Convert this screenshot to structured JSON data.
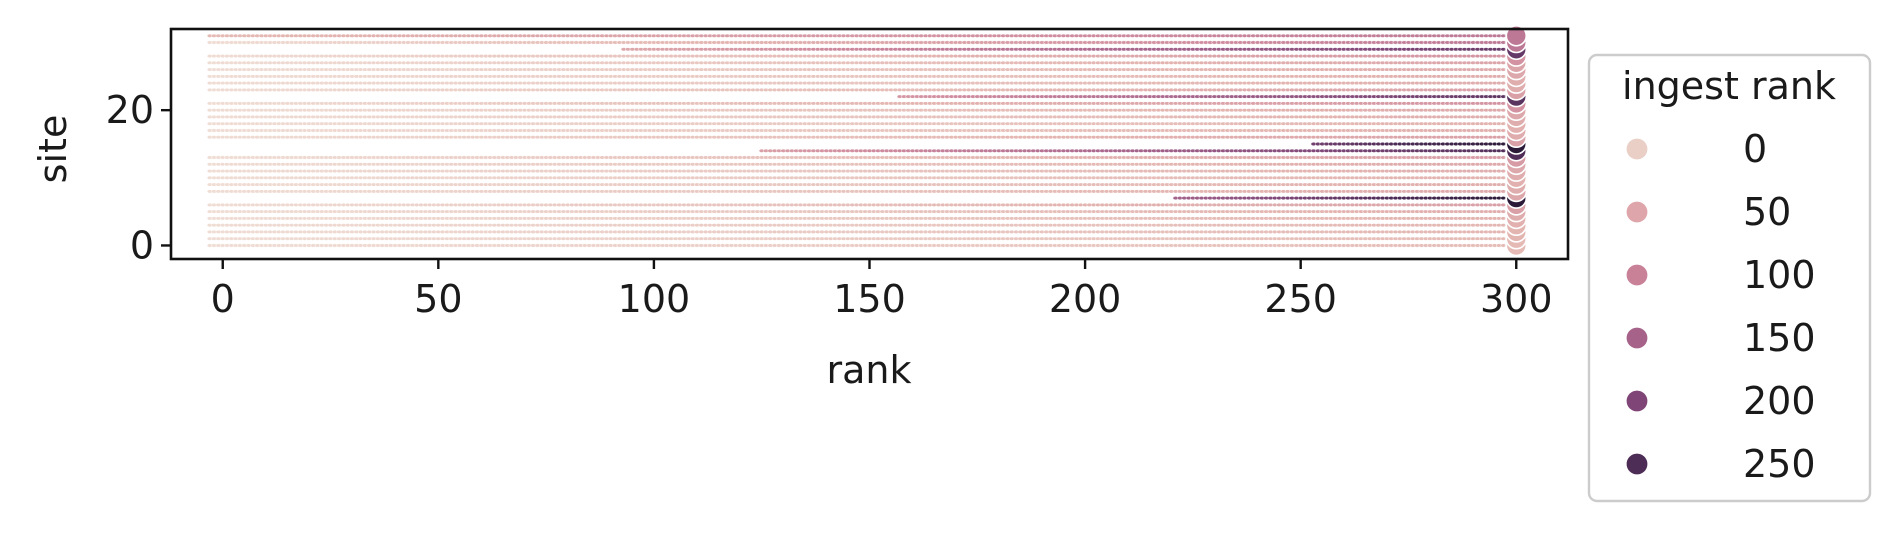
{
  "chart_data": {
    "type": "scatter",
    "title": "",
    "xlabel": "rank",
    "ylabel": "site",
    "xlim": [
      -12,
      312
    ],
    "ylim": [
      -2,
      32
    ],
    "x_ticks": [
      0,
      50,
      100,
      150,
      200,
      250,
      300
    ],
    "y_ticks": [
      0,
      20
    ],
    "grid": false,
    "legend": {
      "title": "ingest rank",
      "placement": "outside-right",
      "entries": [
        {
          "label": "0",
          "value": 0,
          "color": "#e9cfc6"
        },
        {
          "label": "50",
          "value": 50,
          "color": "#dea6ab"
        },
        {
          "label": "100",
          "value": 100,
          "color": "#c98198"
        },
        {
          "label": "150",
          "value": 150,
          "color": "#a76289"
        },
        {
          "label": "200",
          "value": 200,
          "color": "#7f4576"
        },
        {
          "label": "250",
          "value": 250,
          "color": "#4d2c55"
        }
      ]
    },
    "color_scale": {
      "field": "ingest rank",
      "domain": [
        0,
        280
      ],
      "stops": [
        "#efdcd3",
        "#e3b4b0",
        "#cf8b9e",
        "#ad6a8f",
        "#81497a",
        "#4b2b55",
        "#2a1a38"
      ]
    },
    "x_range": [
      -3,
      300
    ],
    "sites": [
      0,
      31
    ],
    "site_series": [
      {
        "site": 0,
        "start_rank": -3,
        "min_ingest": 0,
        "max_ingest": 40
      },
      {
        "site": 1,
        "start_rank": -3,
        "min_ingest": 0,
        "max_ingest": 40
      },
      {
        "site": 2,
        "start_rank": -3,
        "min_ingest": 0,
        "max_ingest": 45
      },
      {
        "site": 3,
        "start_rank": -3,
        "min_ingest": 0,
        "max_ingest": 45
      },
      {
        "site": 4,
        "start_rank": -3,
        "min_ingest": 0,
        "max_ingest": 50
      },
      {
        "site": 5,
        "start_rank": -3,
        "min_ingest": 0,
        "max_ingest": 55
      },
      {
        "site": 6,
        "start_rank": -3,
        "min_ingest": 0,
        "max_ingest": 70
      },
      {
        "site": 7,
        "start_rank": 221,
        "min_ingest": 150,
        "max_ingest": 280
      },
      {
        "site": 8,
        "start_rank": -3,
        "min_ingest": 0,
        "max_ingest": 60
      },
      {
        "site": 9,
        "start_rank": -3,
        "min_ingest": 0,
        "max_ingest": 55
      },
      {
        "site": 10,
        "start_rank": -3,
        "min_ingest": 0,
        "max_ingest": 50
      },
      {
        "site": 11,
        "start_rank": -3,
        "min_ingest": 0,
        "max_ingest": 55
      },
      {
        "site": 12,
        "start_rank": -3,
        "min_ingest": 0,
        "max_ingest": 60
      },
      {
        "site": 13,
        "start_rank": -3,
        "min_ingest": 0,
        "max_ingest": 75
      },
      {
        "site": 14,
        "start_rank": 125,
        "min_ingest": 70,
        "max_ingest": 230
      },
      {
        "site": 15,
        "start_rank": 253,
        "min_ingest": 200,
        "max_ingest": 280
      },
      {
        "site": 16,
        "start_rank": -3,
        "min_ingest": 0,
        "max_ingest": 70
      },
      {
        "site": 17,
        "start_rank": -3,
        "min_ingest": 0,
        "max_ingest": 55
      },
      {
        "site": 18,
        "start_rank": -3,
        "min_ingest": 0,
        "max_ingest": 50
      },
      {
        "site": 19,
        "start_rank": -3,
        "min_ingest": 0,
        "max_ingest": 55
      },
      {
        "site": 20,
        "start_rank": -3,
        "min_ingest": 0,
        "max_ingest": 60
      },
      {
        "site": 21,
        "start_rank": -3,
        "min_ingest": 0,
        "max_ingest": 85
      },
      {
        "site": 22,
        "start_rank": 157,
        "min_ingest": 80,
        "max_ingest": 220
      },
      {
        "site": 23,
        "start_rank": -3,
        "min_ingest": 0,
        "max_ingest": 70
      },
      {
        "site": 24,
        "start_rank": -3,
        "min_ingest": 0,
        "max_ingest": 55
      },
      {
        "site": 25,
        "start_rank": -3,
        "min_ingest": 0,
        "max_ingest": 55
      },
      {
        "site": 26,
        "start_rank": -3,
        "min_ingest": 0,
        "max_ingest": 60
      },
      {
        "site": 27,
        "start_rank": -3,
        "min_ingest": 0,
        "max_ingest": 65
      },
      {
        "site": 28,
        "start_rank": -3,
        "min_ingest": 0,
        "max_ingest": 85
      },
      {
        "site": 29,
        "start_rank": 93,
        "min_ingest": 60,
        "max_ingest": 210
      },
      {
        "site": 30,
        "start_rank": -3,
        "min_ingest": 0,
        "max_ingest": 120
      },
      {
        "site": 31,
        "start_rank": -3,
        "min_ingest": 40,
        "max_ingest": 120
      }
    ]
  }
}
